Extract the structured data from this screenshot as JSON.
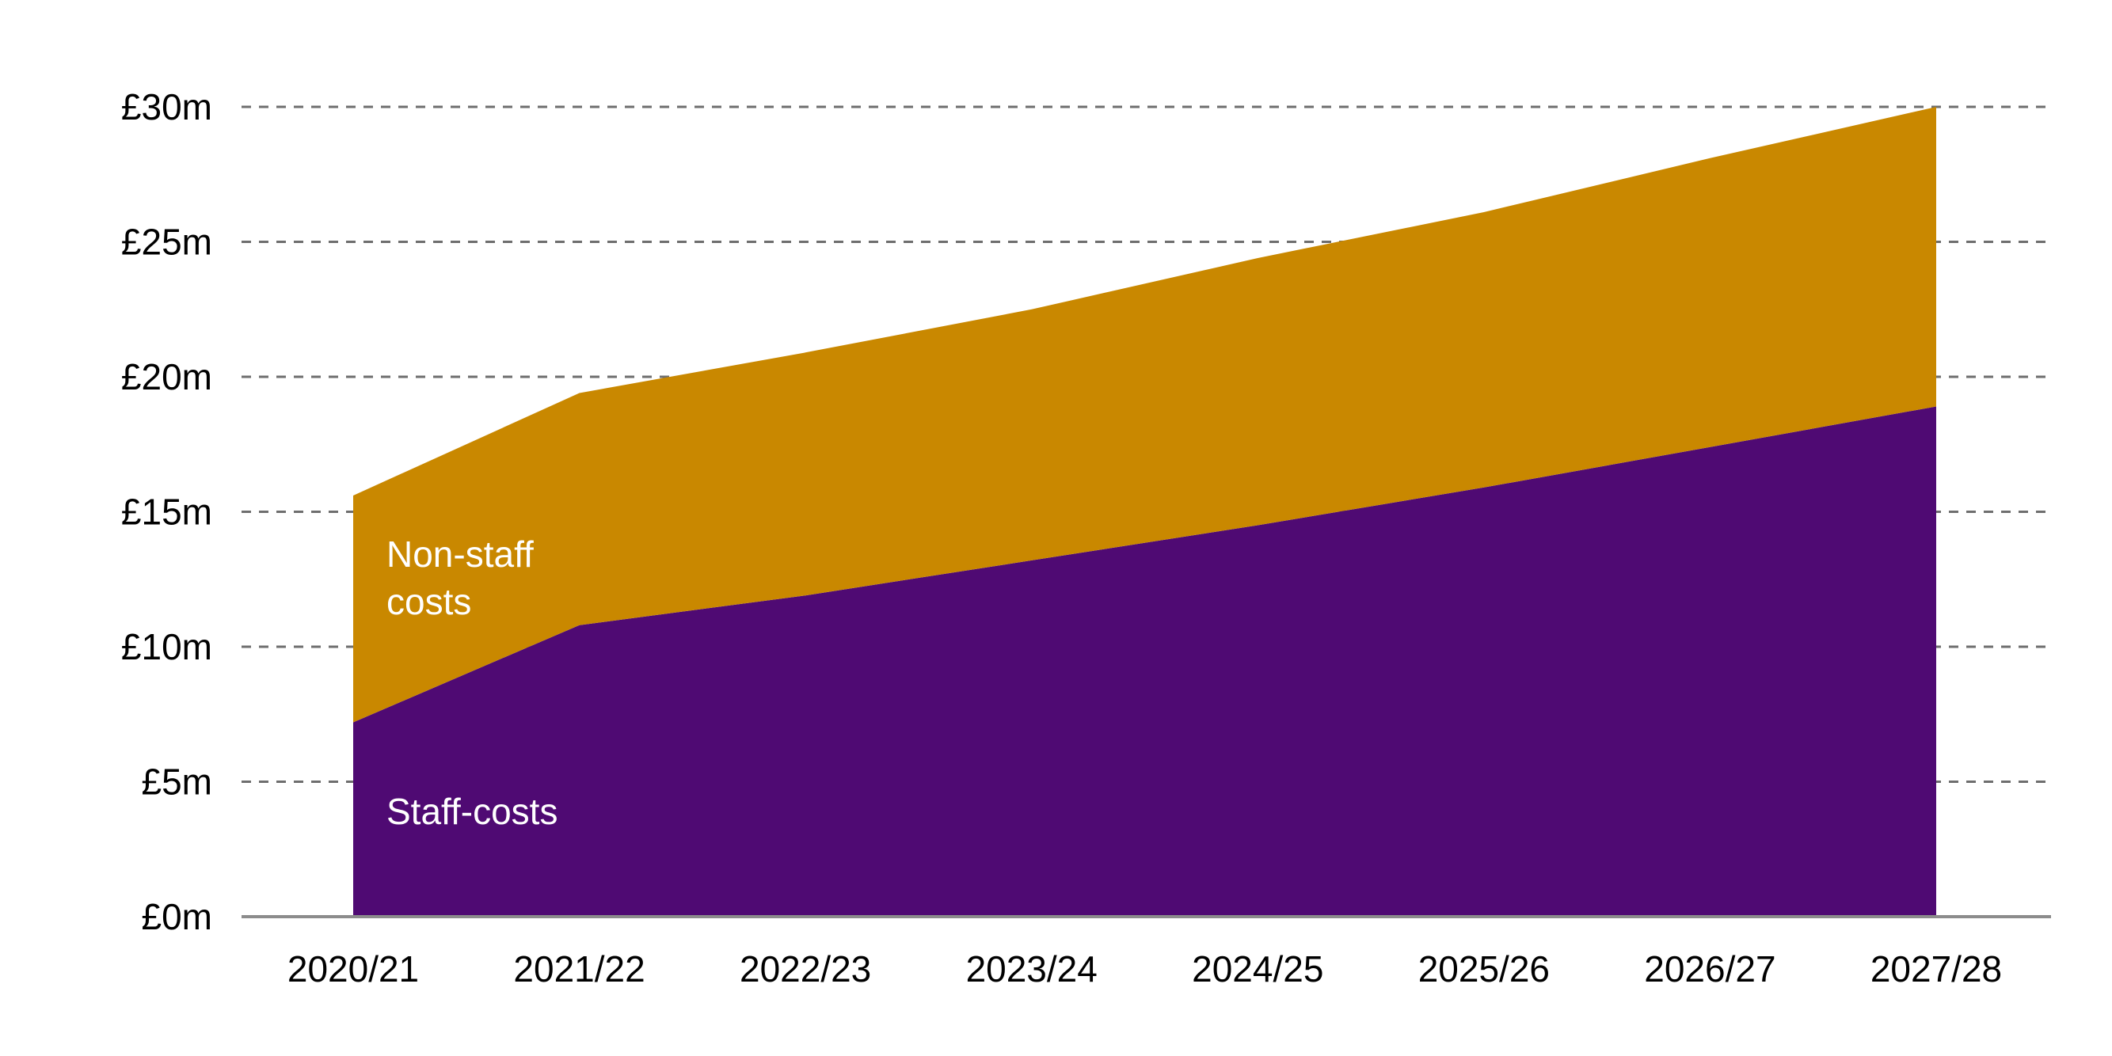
{
  "chart_data": {
    "type": "area",
    "stacked": true,
    "categories": [
      "2020/21",
      "2021/22",
      "2022/23",
      "2023/24",
      "2024/25",
      "2025/26",
      "2026/27",
      "2027/28"
    ],
    "series": [
      {
        "name": "Staff-costs",
        "color": "#4f0a73",
        "values": [
          7.2,
          10.8,
          11.9,
          13.2,
          14.5,
          15.9,
          17.4,
          18.9
        ]
      },
      {
        "name": "Non-staff costs",
        "color": "#c98800",
        "values": [
          8.4,
          8.6,
          9.0,
          9.3,
          9.9,
          10.2,
          10.7,
          11.1
        ]
      }
    ],
    "area_labels": {
      "staff": "Staff-costs",
      "non_staff_line1": "Non-staff",
      "non_staff_line2": "costs"
    },
    "y_ticks": [
      0,
      5,
      10,
      15,
      20,
      25,
      30
    ],
    "y_tick_labels": [
      "£0m",
      "£5m",
      "£10m",
      "£15m",
      "£20m",
      "£25m",
      "£30m"
    ],
    "ylim": [
      0,
      30
    ],
    "grid": true,
    "gridline_style": "dashed",
    "title": "",
    "xlabel": "",
    "ylabel": ""
  }
}
